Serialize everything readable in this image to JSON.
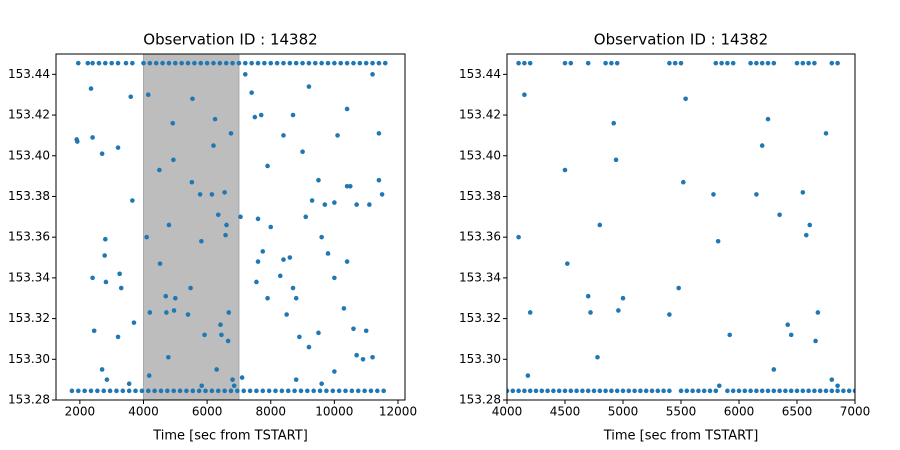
{
  "chart_data": [
    {
      "type": "scatter",
      "title": "Observation ID : 14382",
      "xlabel": "Time [sec from TSTART]",
      "color": "#1f77b4",
      "xlim": [
        1250,
        12220
      ],
      "ylim": [
        153.28,
        153.45
      ],
      "xticks": [
        2000,
        4000,
        6000,
        8000,
        10000,
        12000
      ],
      "yticks": [
        153.28,
        {
          "value": 153.3,
          "label": "153.30"
        },
        153.32,
        153.34,
        153.36,
        153.38,
        {
          "value": 153.4,
          "label": "153.40"
        },
        153.42,
        153.44
      ],
      "highlight_span": [
        4000,
        7000
      ],
      "x": [
        1750,
        1950,
        2150,
        2350,
        2550,
        2750,
        2950,
        3150,
        3350,
        3550,
        3750,
        3950,
        4150,
        4350,
        4550,
        4750,
        4950,
        5150,
        5350,
        5550,
        5750,
        5950,
        6150,
        6350,
        6550,
        6750,
        6950,
        7150,
        7350,
        7550,
        7750,
        7950,
        8150,
        8350,
        8550,
        8750,
        8950,
        9150,
        9350,
        9550,
        9750,
        9950,
        10150,
        10350,
        10550,
        10750,
        10950,
        11150,
        11350,
        11550,
        1950,
        2250,
        2400,
        2600,
        2800,
        3000,
        3200,
        3450,
        3650,
        4000,
        4200,
        4400,
        4600,
        4800,
        5000,
        5200,
        5400,
        5600,
        5800,
        6000,
        6200,
        6400,
        6600,
        6800,
        7000,
        7200,
        7400,
        7600,
        7800,
        8000,
        8200,
        8400,
        8600,
        8800,
        9000,
        9200,
        9400,
        9600,
        9800,
        10000,
        10200,
        10400,
        10600,
        10800,
        11000,
        11200,
        11400,
        11600,
        1900,
        1920,
        2350,
        2400,
        2700,
        3200,
        3600,
        3650,
        2800,
        2780,
        2820,
        2400,
        3250,
        3300,
        3700,
        2450,
        3200,
        2850,
        3550,
        2700,
        4100,
        4150,
        4200,
        4180,
        4500,
        4520,
        4700,
        4720,
        4780,
        4800,
        4920,
        4940,
        4960,
        5000,
        5400,
        5480,
        5520,
        5540,
        5780,
        5820,
        5830,
        5920,
        6150,
        6200,
        6250,
        6300,
        6350,
        6420,
        6450,
        6550,
        6580,
        6610,
        6660,
        6680,
        6750,
        6800,
        6850,
        7050,
        7100,
        7200,
        7400,
        7500,
        7700,
        7900,
        7600,
        8000,
        7750,
        7600,
        7550,
        7900,
        8300,
        8400,
        8600,
        8700,
        8800,
        8500,
        9100,
        9300,
        9500,
        9700,
        10000,
        10400,
        10500,
        10700,
        11100,
        11400,
        11500,
        9600,
        9800,
        10400,
        10000,
        10300,
        10600,
        10700,
        10900,
        11000,
        11200,
        8900,
        9200,
        9500,
        8800,
        9600,
        10000,
        11200,
        11400,
        10400,
        9200,
        8700,
        10100,
        8400,
        9000
      ],
      "y": [
        153.2845,
        153.2845,
        153.2845,
        153.2845,
        153.2845,
        153.2845,
        153.2845,
        153.2845,
        153.2845,
        153.2845,
        153.2845,
        153.2845,
        153.2845,
        153.2845,
        153.2845,
        153.2845,
        153.2845,
        153.2845,
        153.2845,
        153.2845,
        153.2845,
        153.2845,
        153.2845,
        153.2845,
        153.2845,
        153.2845,
        153.2845,
        153.2845,
        153.2845,
        153.2845,
        153.2845,
        153.2845,
        153.2845,
        153.2845,
        153.2845,
        153.2845,
        153.2845,
        153.2845,
        153.2845,
        153.2845,
        153.2845,
        153.2845,
        153.2845,
        153.2845,
        153.2845,
        153.2845,
        153.2845,
        153.2845,
        153.2845,
        153.2845,
        153.4455,
        153.4455,
        153.4455,
        153.4455,
        153.4455,
        153.4455,
        153.4455,
        153.4455,
        153.4455,
        153.4455,
        153.4455,
        153.4455,
        153.4455,
        153.4455,
        153.4455,
        153.4455,
        153.4455,
        153.4455,
        153.4455,
        153.4455,
        153.4455,
        153.4455,
        153.4455,
        153.4455,
        153.4455,
        153.4455,
        153.4455,
        153.4455,
        153.4455,
        153.4455,
        153.4455,
        153.4455,
        153.4455,
        153.4455,
        153.4455,
        153.4455,
        153.4455,
        153.4455,
        153.4455,
        153.4455,
        153.4455,
        153.4455,
        153.4455,
        153.4455,
        153.4455,
        153.4455,
        153.4455,
        153.4455,
        153.408,
        153.407,
        153.433,
        153.409,
        153.401,
        153.404,
        153.429,
        153.378,
        153.359,
        153.351,
        153.338,
        153.34,
        153.342,
        153.335,
        153.318,
        153.314,
        153.311,
        153.29,
        153.288,
        153.295,
        153.36,
        153.43,
        153.323,
        153.292,
        153.393,
        153.347,
        153.331,
        153.323,
        153.301,
        153.366,
        153.416,
        153.398,
        153.324,
        153.33,
        153.322,
        153.335,
        153.387,
        153.428,
        153.381,
        153.358,
        153.287,
        153.312,
        153.381,
        153.405,
        153.418,
        153.295,
        153.371,
        153.317,
        153.312,
        153.382,
        153.361,
        153.366,
        153.309,
        153.323,
        153.411,
        153.29,
        153.287,
        153.37,
        153.291,
        153.44,
        153.431,
        153.419,
        153.42,
        153.395,
        153.369,
        153.365,
        153.353,
        153.348,
        153.338,
        153.33,
        153.341,
        153.349,
        153.35,
        153.335,
        153.33,
        153.322,
        153.37,
        153.378,
        153.388,
        153.376,
        153.377,
        153.385,
        153.385,
        153.376,
        153.376,
        153.388,
        153.381,
        153.36,
        153.352,
        153.348,
        153.34,
        153.325,
        153.315,
        153.302,
        153.3,
        153.314,
        153.301,
        153.311,
        153.306,
        153.313,
        153.29,
        153.288,
        153.294,
        153.44,
        153.411,
        153.423,
        153.434,
        153.42,
        153.41,
        153.41,
        153.402
      ]
    },
    {
      "type": "scatter",
      "title": "Observation ID : 14382",
      "xlabel": "Time [sec from TSTART]",
      "color": "#1f77b4",
      "xlim": [
        4000,
        7000
      ],
      "ylim": [
        153.28,
        153.45
      ],
      "xticks": [
        4000,
        4500,
        5000,
        5500,
        6000,
        6500,
        7000
      ],
      "yticks": [
        153.28,
        {
          "value": 153.3,
          "label": "153.30"
        },
        153.32,
        153.34,
        153.36,
        153.38,
        {
          "value": 153.4,
          "label": "153.40"
        },
        153.42,
        153.44
      ],
      "x": [
        4000,
        4050,
        4100,
        4150,
        4200,
        4250,
        4300,
        4350,
        4400,
        4450,
        4500,
        4550,
        4600,
        4650,
        4700,
        4750,
        4800,
        4850,
        4900,
        4950,
        5000,
        5050,
        5100,
        5150,
        5200,
        5250,
        5300,
        5350,
        5400,
        5500,
        5550,
        5600,
        5650,
        5700,
        5750,
        5800,
        5900,
        5950,
        6000,
        6050,
        6100,
        6150,
        6200,
        6250,
        6300,
        6350,
        6400,
        6450,
        6500,
        6550,
        6600,
        6650,
        6700,
        6750,
        6800,
        6850,
        6900,
        6950,
        7000,
        4100,
        4150,
        4200,
        4500,
        4550,
        4700,
        4850,
        4900,
        4950,
        5400,
        5450,
        5500,
        5800,
        5850,
        5900,
        5950,
        6100,
        6150,
        6200,
        6250,
        6300,
        6500,
        6550,
        6600,
        6650,
        6800,
        6850,
        4100,
        4150,
        4200,
        4180,
        4500,
        4520,
        4700,
        4720,
        4780,
        4800,
        4920,
        4940,
        4960,
        5000,
        5400,
        5480,
        5520,
        5540,
        5780,
        5820,
        5830,
        5920,
        6150,
        6200,
        6250,
        6300,
        6350,
        6420,
        6450,
        6550,
        6580,
        6610,
        6660,
        6680,
        6750,
        6800,
        6850
      ],
      "y": [
        153.2845,
        153.2845,
        153.2845,
        153.2845,
        153.2845,
        153.2845,
        153.2845,
        153.2845,
        153.2845,
        153.2845,
        153.2845,
        153.2845,
        153.2845,
        153.2845,
        153.2845,
        153.2845,
        153.2845,
        153.2845,
        153.2845,
        153.2845,
        153.2845,
        153.2845,
        153.2845,
        153.2845,
        153.2845,
        153.2845,
        153.2845,
        153.2845,
        153.2845,
        153.2845,
        153.2845,
        153.2845,
        153.2845,
        153.2845,
        153.2845,
        153.2845,
        153.2845,
        153.2845,
        153.2845,
        153.2845,
        153.2845,
        153.2845,
        153.2845,
        153.2845,
        153.2845,
        153.2845,
        153.2845,
        153.2845,
        153.2845,
        153.2845,
        153.2845,
        153.2845,
        153.2845,
        153.2845,
        153.2845,
        153.2845,
        153.2845,
        153.2845,
        153.2845,
        153.4455,
        153.4455,
        153.4455,
        153.4455,
        153.4455,
        153.4455,
        153.4455,
        153.4455,
        153.4455,
        153.4455,
        153.4455,
        153.4455,
        153.4455,
        153.4455,
        153.4455,
        153.4455,
        153.4455,
        153.4455,
        153.4455,
        153.4455,
        153.4455,
        153.4455,
        153.4455,
        153.4455,
        153.4455,
        153.4455,
        153.4455,
        153.36,
        153.43,
        153.323,
        153.292,
        153.393,
        153.347,
        153.331,
        153.323,
        153.301,
        153.366,
        153.416,
        153.398,
        153.324,
        153.33,
        153.322,
        153.335,
        153.387,
        153.428,
        153.381,
        153.358,
        153.287,
        153.312,
        153.381,
        153.405,
        153.418,
        153.295,
        153.371,
        153.317,
        153.312,
        153.382,
        153.361,
        153.366,
        153.309,
        153.323,
        153.411,
        153.29,
        153.287
      ]
    }
  ]
}
